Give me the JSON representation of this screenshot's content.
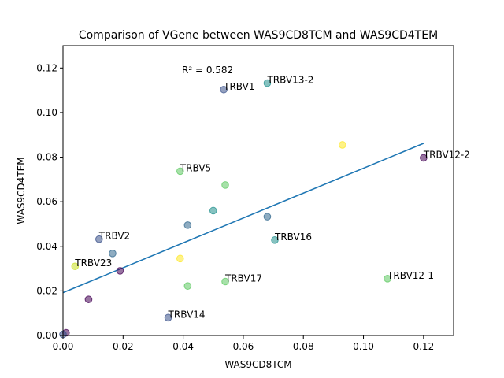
{
  "chart_data": {
    "type": "scatter",
    "title": "Comparison of VGene between WAS9CD8TCM and WAS9CD4TEM",
    "xlabel": "WAS9CD8TCM",
    "ylabel": "WAS9CD4TEM",
    "xlim": [
      0,
      0.13
    ],
    "ylim": [
      0,
      0.13
    ],
    "xticks": [
      "0.00",
      "0.02",
      "0.04",
      "0.06",
      "0.08",
      "0.10",
      "0.12"
    ],
    "yticks": [
      "0.000",
      "0.020",
      "0.040",
      "0.060",
      "0.080",
      "0.100",
      "0.120"
    ],
    "ytick_labels": [
      "0.00",
      "0.02",
      "0.04",
      "0.06",
      "0.08",
      "0.10",
      "0.12"
    ],
    "annotation": "R² = 0.582",
    "fit_line": {
      "x": [
        0,
        0.12
      ],
      "y": [
        0.0192,
        0.0862
      ],
      "color": "#1f77b4"
    },
    "points": [
      {
        "x": 0.0535,
        "y": 0.1103,
        "label": "TRBV1",
        "color": "#3b528b"
      },
      {
        "x": 0.068,
        "y": 0.1132,
        "label": "TRBV13-2",
        "color": "#21908d"
      },
      {
        "x": 0.093,
        "y": 0.0855,
        "label": "",
        "color": "#fde725"
      },
      {
        "x": 0.12,
        "y": 0.0797,
        "label": "TRBV12-2",
        "color": "#440154"
      },
      {
        "x": 0.039,
        "y": 0.0737,
        "label": "TRBV5",
        "color": "#5ec962"
      },
      {
        "x": 0.054,
        "y": 0.0675,
        "label": "",
        "color": "#5ec962"
      },
      {
        "x": 0.05,
        "y": 0.056,
        "label": "",
        "color": "#21908d"
      },
      {
        "x": 0.068,
        "y": 0.0533,
        "label": "",
        "color": "#31688e"
      },
      {
        "x": 0.0415,
        "y": 0.0495,
        "label": "",
        "color": "#31688e"
      },
      {
        "x": 0.0705,
        "y": 0.0428,
        "label": "TRBV16",
        "color": "#21908d"
      },
      {
        "x": 0.012,
        "y": 0.0432,
        "label": "TRBV2",
        "color": "#3b528b"
      },
      {
        "x": 0.0165,
        "y": 0.0368,
        "label": "",
        "color": "#31688e"
      },
      {
        "x": 0.039,
        "y": 0.0345,
        "label": "",
        "color": "#fde725"
      },
      {
        "x": 0.004,
        "y": 0.031,
        "label": "TRBV23",
        "color": "#c8e020"
      },
      {
        "x": 0.019,
        "y": 0.029,
        "label": "",
        "color": "#440154"
      },
      {
        "x": 0.108,
        "y": 0.0255,
        "label": "TRBV12-1",
        "color": "#5ec962"
      },
      {
        "x": 0.054,
        "y": 0.0242,
        "label": "TRBV17",
        "color": "#5ec962"
      },
      {
        "x": 0.0415,
        "y": 0.0222,
        "label": "",
        "color": "#5ec962"
      },
      {
        "x": 0.0085,
        "y": 0.0162,
        "label": "",
        "color": "#440154"
      },
      {
        "x": 0.035,
        "y": 0.008,
        "label": "TRBV14",
        "color": "#3b528b"
      },
      {
        "x": 0.001,
        "y": 0.0012,
        "label": "",
        "color": "#440154"
      },
      {
        "x": 0.0,
        "y": 0.0005,
        "label": "",
        "color": "#3b528b"
      }
    ]
  }
}
